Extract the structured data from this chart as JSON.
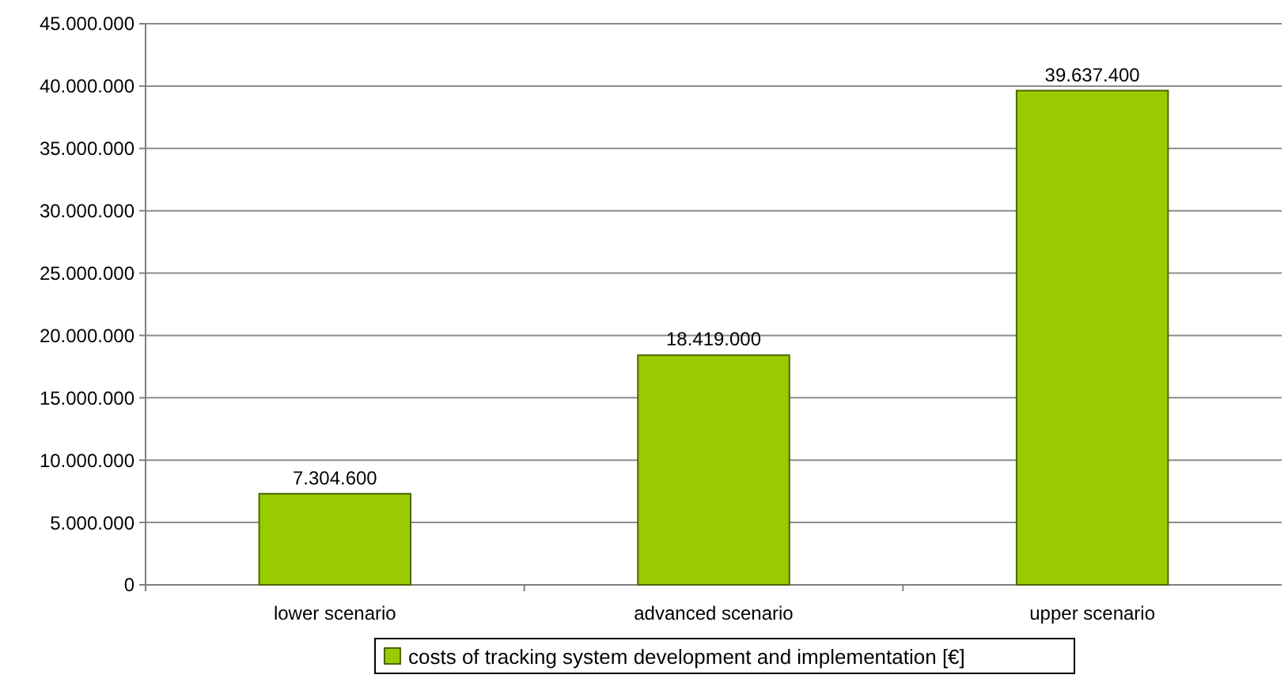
{
  "chart_data": {
    "type": "bar",
    "categories": [
      "lower scenario",
      "advanced scenario",
      "upper scenario"
    ],
    "series": [
      {
        "name": "costs of tracking system development and implementation [€]",
        "color": "#99cc00",
        "values": [
          7304600,
          18419000,
          39637400
        ]
      }
    ],
    "value_labels": [
      "7.304.600",
      "18.419.000",
      "39.637.400"
    ],
    "ylim": [
      0,
      45000000
    ],
    "yticks": [
      {
        "value": 0,
        "label": "0"
      },
      {
        "value": 5000000,
        "label": "5.000.000"
      },
      {
        "value": 10000000,
        "label": "10.000.000"
      },
      {
        "value": 15000000,
        "label": "15.000.000"
      },
      {
        "value": 20000000,
        "label": "20.000.000"
      },
      {
        "value": 25000000,
        "label": "25.000.000"
      },
      {
        "value": 30000000,
        "label": "30.000.000"
      },
      {
        "value": 35000000,
        "label": "35.000.000"
      },
      {
        "value": 40000000,
        "label": "40.000.000"
      },
      {
        "value": 45000000,
        "label": "45.000.000"
      }
    ],
    "grid": "y",
    "legend": "bottom"
  }
}
